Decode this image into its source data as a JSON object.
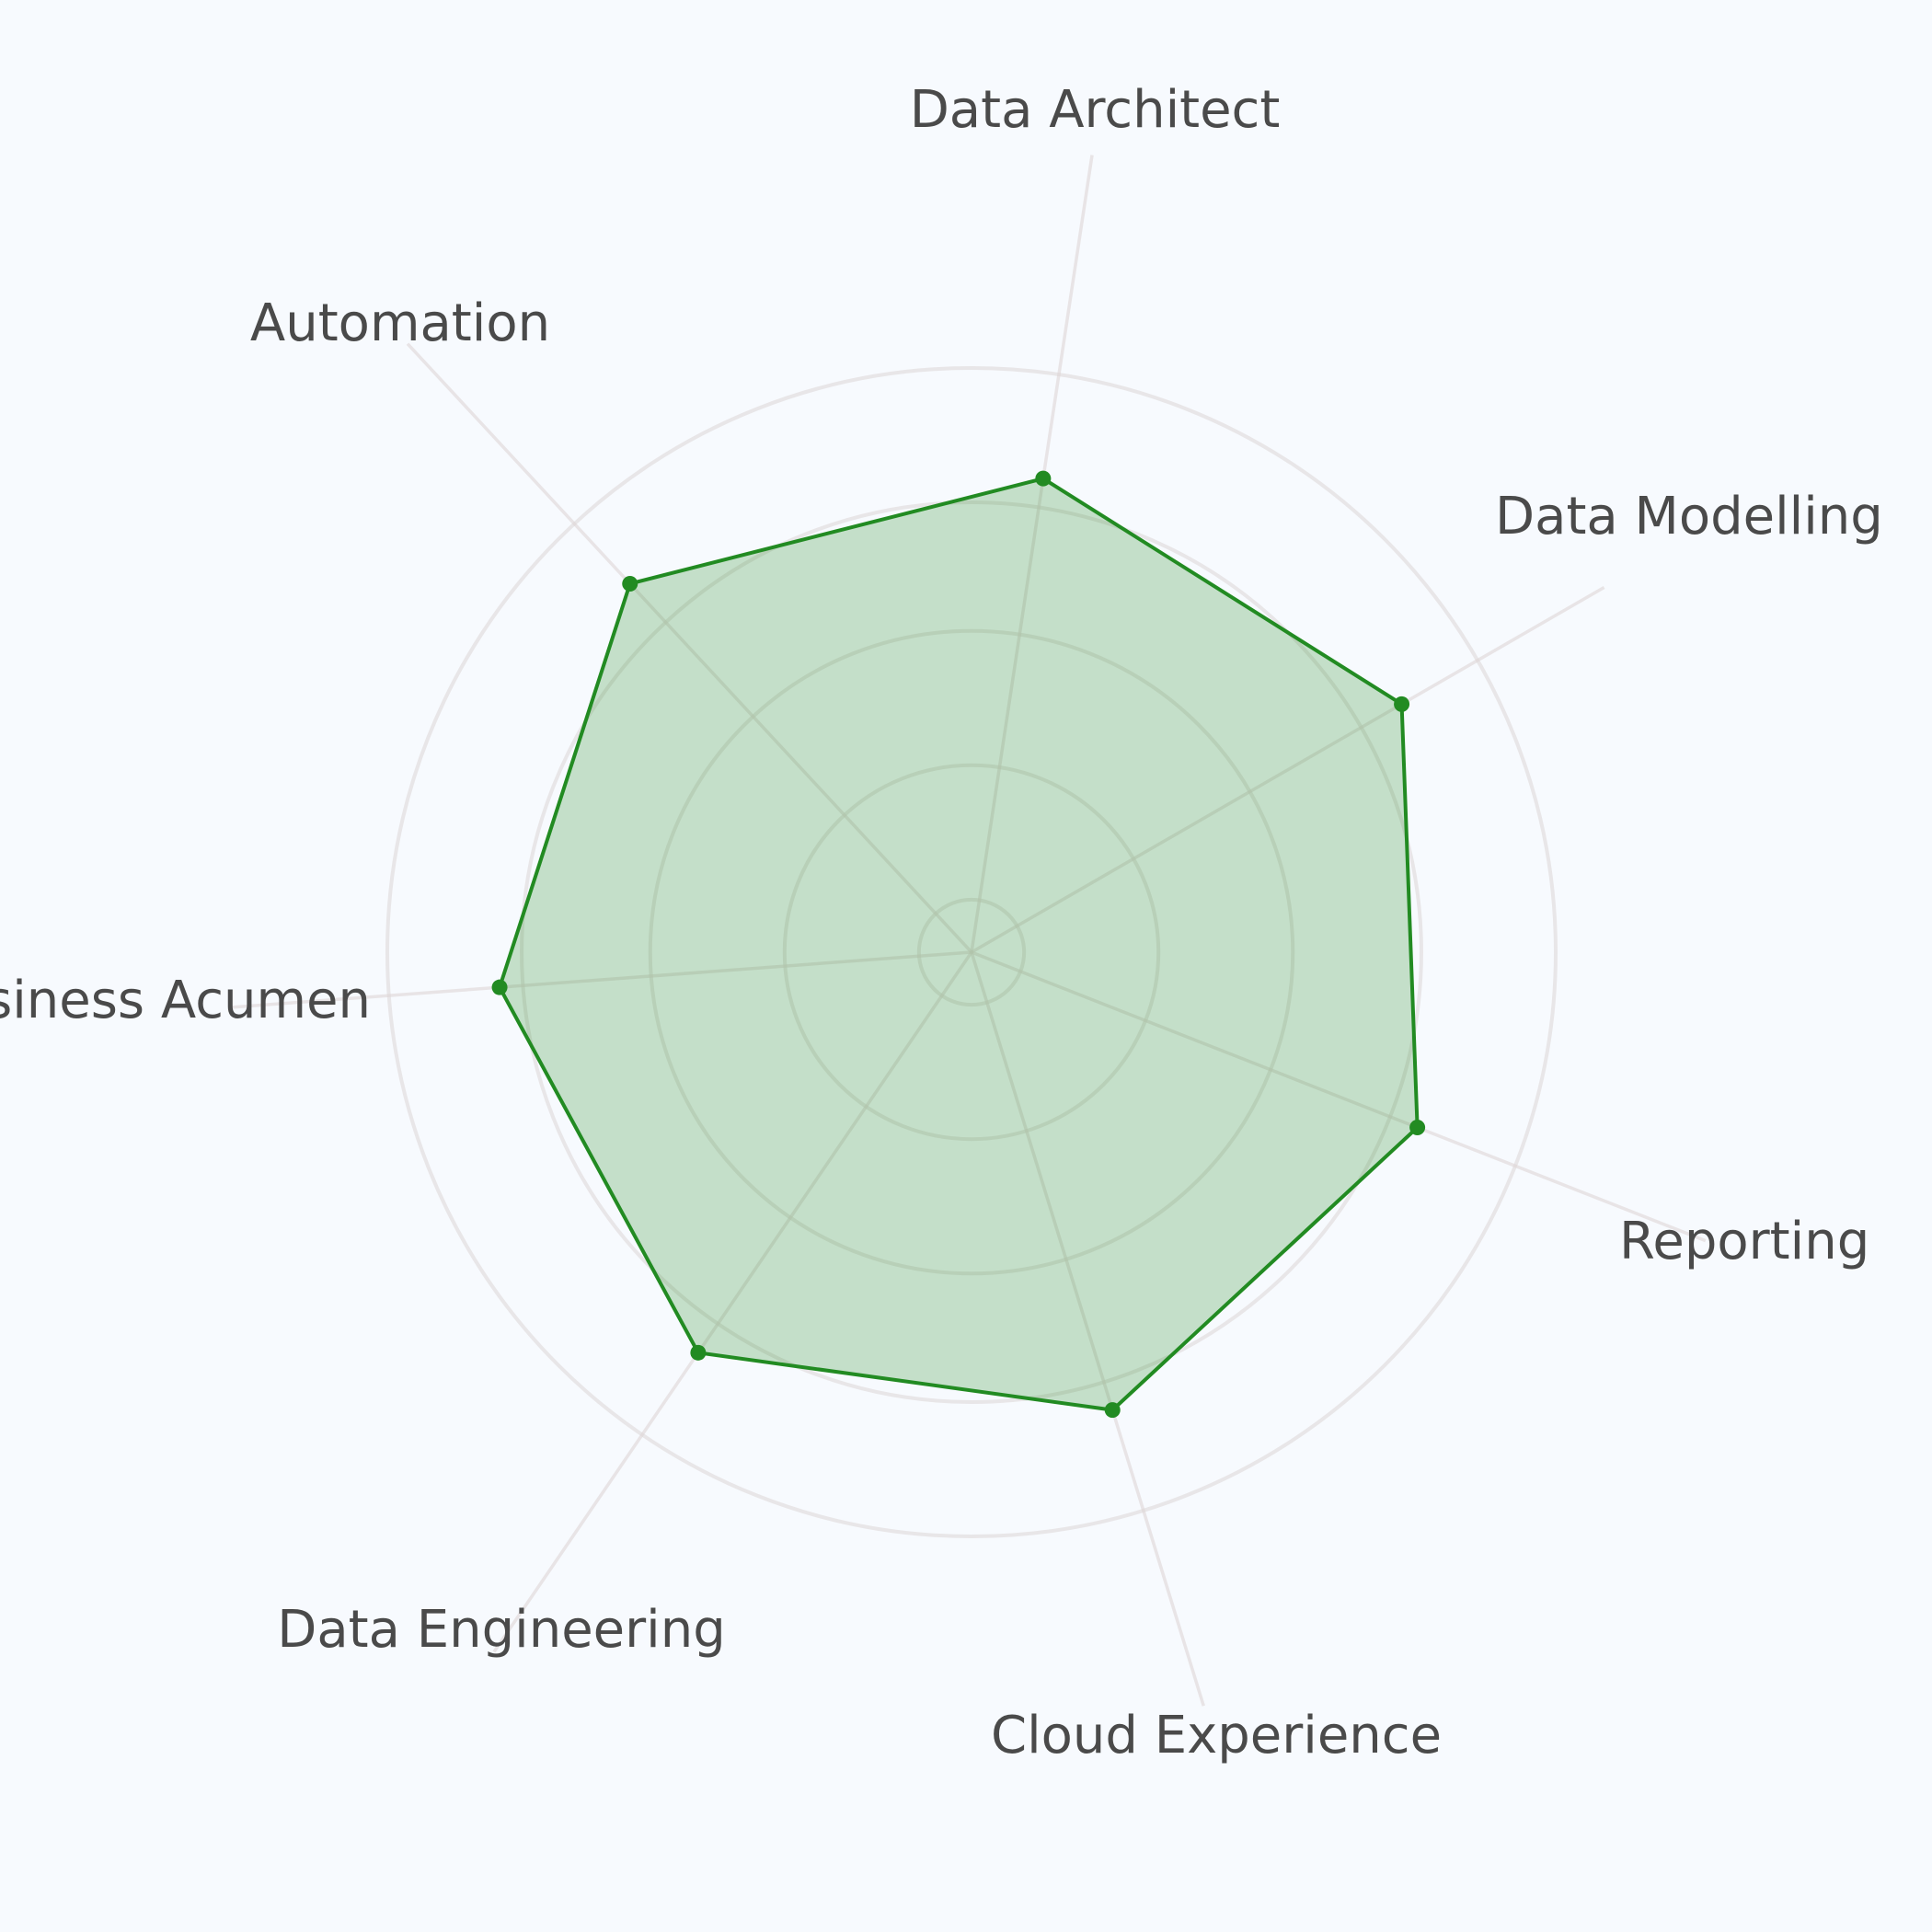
{
  "chart_data": {
    "type": "radar",
    "axes": [
      "Data Architect",
      "Data Modelling",
      "Reporting",
      "Cloud Experience",
      "Data Engineering",
      "Business Acumen",
      "Automation"
    ],
    "series": [
      {
        "values": [
          0.82,
          0.85,
          0.82,
          0.82,
          0.83,
          0.81,
          0.86
        ],
        "color": "#228b22",
        "fill_color": "#228b22",
        "fill_opacity": 0.24
      }
    ],
    "grid_levels": [
      0.09,
      0.32,
      0.55,
      0.77,
      1.0
    ],
    "range": [
      0,
      1
    ],
    "grid": true,
    "legend": "none",
    "colors": {
      "background": "#f7fafe",
      "grid": "#ddd6d6",
      "label": "#4a4a4a"
    }
  }
}
